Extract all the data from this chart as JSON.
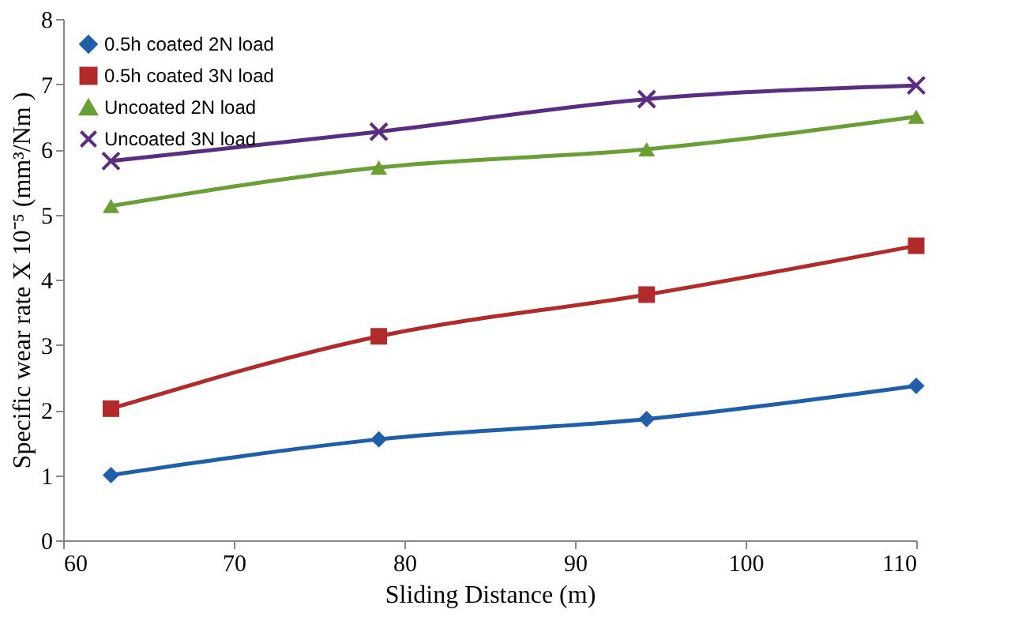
{
  "chart_data": {
    "type": "line",
    "xlabel": "Sliding Distance (m)",
    "ylabel": "Specific wear rate X 10⁻⁵ (mm³/Nm )",
    "x": [
      62.8,
      78.5,
      94.2,
      110
    ],
    "series": [
      {
        "name": "0.5h coated 2N load",
        "color": "#1f5ea8",
        "marker": "diamond",
        "values": [
          1.0,
          1.55,
          1.86,
          2.37
        ]
      },
      {
        "name": "0.5h coated 3N load",
        "color": "#b22b2b",
        "marker": "square",
        "values": [
          2.02,
          3.13,
          3.77,
          4.52
        ]
      },
      {
        "name": "Uncoated 2N load",
        "color": "#6a9f35",
        "marker": "triangle",
        "values": [
          5.13,
          5.72,
          6.0,
          6.5
        ]
      },
      {
        "name": "Uncoated 3N load",
        "color": "#5a2d82",
        "marker": "cross",
        "values": [
          5.82,
          6.27,
          6.77,
          6.98
        ]
      }
    ],
    "xlim": [
      60,
      110
    ],
    "xticks": [
      60,
      70,
      80,
      90,
      100,
      110
    ],
    "ylim": [
      0,
      8
    ],
    "yticks": [
      0,
      1,
      2,
      3,
      4,
      5,
      6,
      7,
      8
    ],
    "grid": false,
    "legend": "top left",
    "line_style": "solid"
  }
}
